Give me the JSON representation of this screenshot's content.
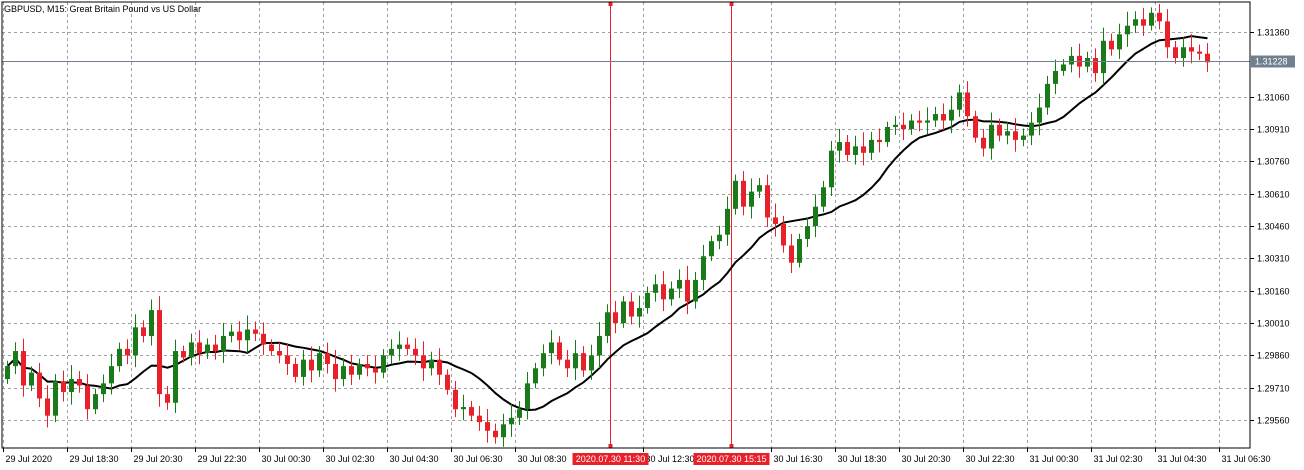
{
  "chart_data": {
    "type": "candlestick",
    "title": "GBPUSD, M15:  Great Britain Pound vs US Dollar",
    "y_ticks": [
      "1.31360",
      "1.31060",
      "1.30910",
      "1.30760",
      "1.30610",
      "1.30460",
      "1.30310",
      "1.30160",
      "1.30010",
      "1.29860",
      "1.29710",
      "1.29560"
    ],
    "ylim": [
      1.2943,
      1.315
    ],
    "x_ticks": [
      "29 Jul 2020",
      "29 Jul 18:30",
      "29 Jul 20:30",
      "29 Jul 22:30",
      "30 Jul 00:30",
      "30 Jul 02:30",
      "30 Jul 04:30",
      "30 Jul 06:30",
      "30 Jul 08:30",
      "30 Jul 12:30",
      "30 Jul 16:30",
      "30 Jul 18:30",
      "30 Jul 20:30",
      "30 Jul 22:30",
      "31 Jul 00:30",
      "31 Jul 02:30",
      "31 Jul 04:30",
      "31 Jul 06:30"
    ],
    "current_price": "1.31228",
    "markers": [
      "2020.07.30 11:30",
      "2020.07.30 15:15"
    ],
    "colors": {
      "bull": "#1a7a1a",
      "bear": "#e8202a",
      "grid": "#a0a0a0",
      "ma": "#000000",
      "marker": "#e8202a",
      "price_line": "#708090"
    },
    "grid": true,
    "closes": [
      1.2981,
      1.2988,
      1.2972,
      1.2978,
      1.2966,
      1.2958,
      1.2974,
      1.2969,
      1.2975,
      1.2972,
      1.2961,
      1.2968,
      1.2973,
      1.2981,
      1.2989,
      1.2986,
      1.2999,
      1.2995,
      1.3007,
      1.2968,
      1.2964,
      1.2988,
      1.2985,
      1.2992,
      1.2987,
      1.2991,
      1.2988,
      1.2995,
      1.2997,
      1.2993,
      1.2998,
      1.2996,
      1.2991,
      1.2988,
      1.2986,
      1.2982,
      1.2976,
      1.2984,
      1.2979,
      1.2987,
      1.2982,
      1.2975,
      1.2981,
      1.2977,
      1.2982,
      1.298,
      1.2978,
      1.2986,
      1.2989,
      1.2991,
      1.2989,
      1.2986,
      1.298,
      1.2984,
      1.2977,
      1.297,
      1.2961,
      1.2962,
      1.2958,
      1.2955,
      1.2951,
      1.2948,
      1.2954,
      1.2957,
      1.2961,
      1.2973,
      1.298,
      1.2987,
      1.2992,
      1.2984,
      1.298,
      1.2987,
      1.2979,
      1.2986,
      1.2995,
      1.3006,
      1.3001,
      1.3011,
      1.3004,
      1.3008,
      1.3015,
      1.3019,
      1.3012,
      1.3017,
      1.3021,
      1.3011,
      1.3021,
      1.3032,
      1.3039,
      1.3042,
      1.3054,
      1.3067,
      1.3055,
      1.3062,
      1.3065,
      1.305,
      1.3047,
      1.3037,
      1.3029,
      1.304,
      1.3046,
      1.3055,
      1.3064,
      1.3081,
      1.3085,
      1.3079,
      1.3083,
      1.308,
      1.3086,
      1.3085,
      1.3092,
      1.3093,
      1.3091,
      1.3095,
      1.3094,
      1.3095,
      1.3098,
      1.3095,
      1.31,
      1.3108,
      1.3097,
      1.3087,
      1.3082,
      1.3093,
      1.3088,
      1.309,
      1.3086,
      1.3088,
      1.3094,
      1.3101,
      1.3112,
      1.3118,
      1.3121,
      1.3125,
      1.312,
      1.3124,
      1.3117,
      1.3132,
      1.3128,
      1.3135,
      1.3139,
      1.3142,
      1.3139,
      1.3145,
      1.3141,
      1.3129,
      1.3124,
      1.3129,
      1.3127,
      1.3126,
      1.3122
    ]
  }
}
